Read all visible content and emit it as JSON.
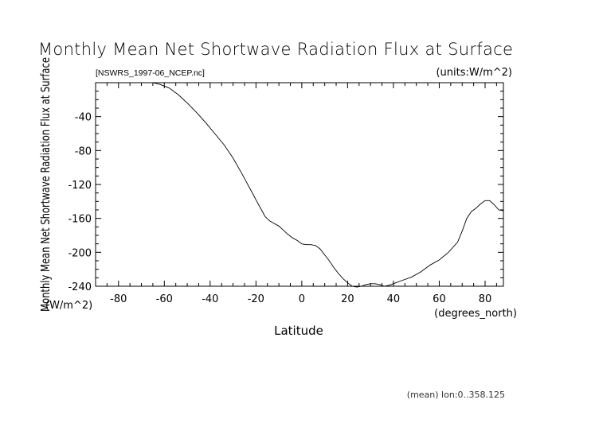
{
  "chart_data": {
    "type": "line",
    "title": "Monthly Mean Net Shortwave Radiation Flux at Surface",
    "subtitle": "[NSWRS_1997-06_NCEP.nc]",
    "units_label": "(units:W/m^2)",
    "xlabel": "Latitude",
    "x_units": "(degrees_north)",
    "ylabel": "Monthly Mean Net Shortwave Radiation Flux at Surface",
    "y_units": "(W/m^2)",
    "footer": "(mean) lon:0..358.125",
    "xlim": [
      -90,
      88
    ],
    "ylim": [
      -240,
      0
    ],
    "x_ticks": [
      -80,
      -60,
      -40,
      -20,
      0,
      20,
      40,
      60,
      80
    ],
    "y_ticks": [
      -40,
      -80,
      -120,
      -160,
      -200,
      -240
    ],
    "grid": false,
    "series": [
      {
        "x": [
          -65,
          -62,
          -58,
          -54,
          -50,
          -46,
          -42,
          -38,
          -34,
          -30,
          -26,
          -22,
          -20,
          -18,
          -16,
          -14,
          -12,
          -10,
          -8,
          -6,
          -4,
          -2,
          0,
          2,
          4,
          6,
          8,
          10,
          12,
          14,
          16,
          18,
          20,
          22,
          24,
          26,
          28,
          30,
          32,
          34,
          36,
          38,
          40,
          44,
          48,
          52,
          56,
          60,
          64,
          68,
          70,
          72,
          74,
          76,
          78,
          80,
          82,
          84,
          86,
          88
        ],
        "y": [
          0,
          -2,
          -6,
          -14,
          -24,
          -35,
          -47,
          -60,
          -73,
          -89,
          -108,
          -128,
          -138,
          -148,
          -158,
          -163,
          -166,
          -169,
          -174,
          -179,
          -183,
          -186,
          -190,
          -191,
          -191,
          -192,
          -196,
          -203,
          -210,
          -218,
          -225,
          -231,
          -236,
          -240,
          -241,
          -240,
          -238,
          -237,
          -237,
          -238,
          -240,
          -239,
          -237,
          -233,
          -229,
          -223,
          -215,
          -209,
          -200,
          -188,
          -175,
          -160,
          -152,
          -148,
          -143,
          -139,
          -139,
          -144,
          -150,
          -151
        ]
      }
    ]
  }
}
